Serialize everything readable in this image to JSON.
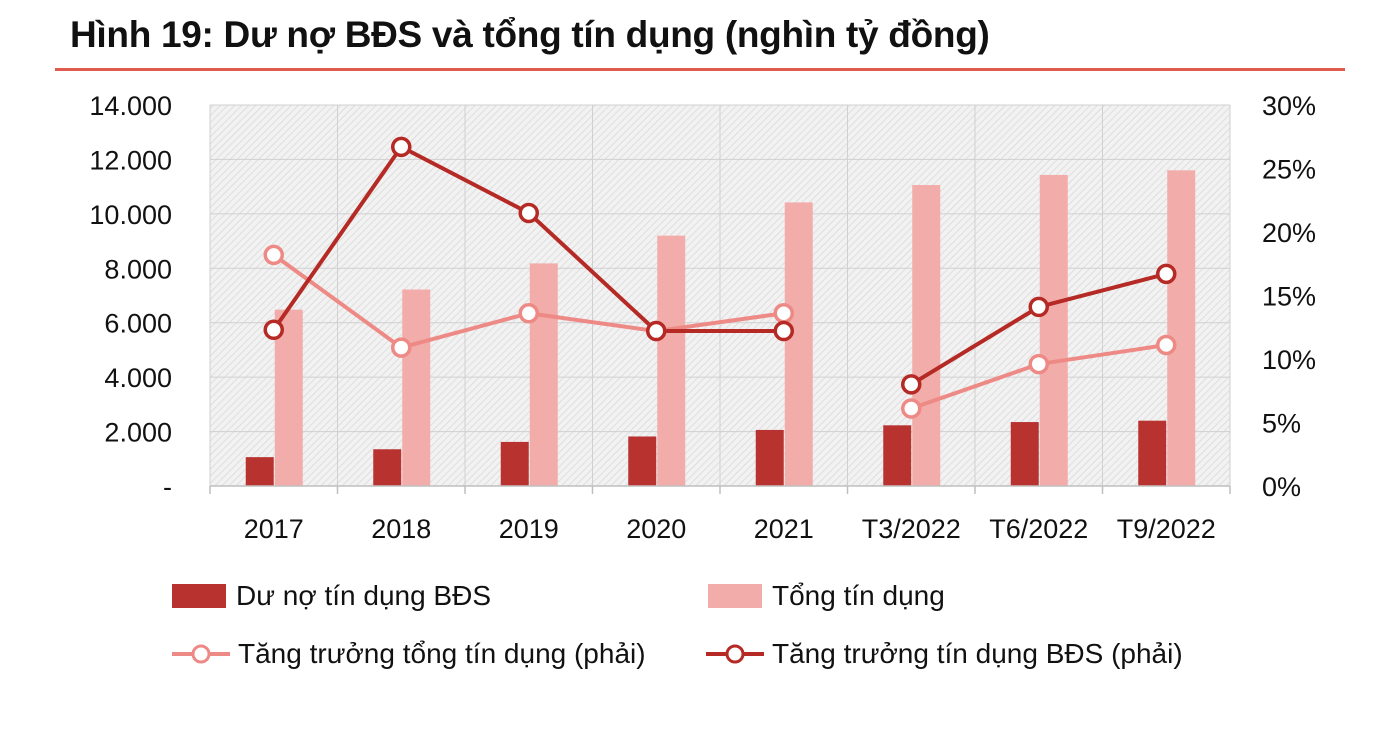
{
  "title": "Hình 19: Dư nợ BĐS và tổng tín dụng (nghìn tỷ đồng)",
  "colors": {
    "bds": "#b8332f",
    "total": "#f2adab",
    "growth_total": "#ee8a86",
    "growth_bds": "#b52a25",
    "accent": "#e05a4e"
  },
  "legend": {
    "bds_debt": "Dư nợ tín dụng BĐS",
    "total_credit": "Tổng tín dụng",
    "total_growth": "Tăng trưởng tổng tín dụng (phải)",
    "bds_growth": "Tăng trưởng tín dụng BĐS (phải)"
  },
  "chart_data": {
    "type": "bar",
    "categories": [
      "2017",
      "2018",
      "2019",
      "2020",
      "2021",
      "T3/2022",
      "T6/2022",
      "T9/2022"
    ],
    "y_left_ticks": [
      "-",
      "2.000",
      "4.000",
      "6.000",
      "8.000",
      "10.000",
      "12.000",
      "14.000"
    ],
    "y_right_ticks": [
      "0%",
      "5%",
      "10%",
      "15%",
      "20%",
      "25%",
      "30%"
    ],
    "ylim_left": [
      0,
      14000
    ],
    "ylim_right": [
      0,
      30
    ],
    "grid": true,
    "legend_position": "bottom",
    "series": [
      {
        "name": "Dư nợ tín dụng BĐS",
        "kind": "bar",
        "axis": "left",
        "values": [
          1060,
          1350,
          1620,
          1820,
          2060,
          2230,
          2350,
          2400
        ]
      },
      {
        "name": "Tổng tín dụng",
        "kind": "bar",
        "axis": "left",
        "values": [
          6480,
          7220,
          8180,
          9200,
          10420,
          11060,
          11430,
          11600
        ]
      },
      {
        "name": "Tăng trưởng tổng tín dụng (phải)",
        "kind": "line",
        "axis": "right",
        "values": [
          18.2,
          10.9,
          13.6,
          12.2,
          13.6,
          6.1,
          9.6,
          11.1
        ]
      },
      {
        "name": "Tăng trưởng tín dụng BĐS (phải)",
        "kind": "line",
        "axis": "right",
        "values": [
          12.3,
          26.7,
          21.5,
          12.2,
          12.2,
          8.0,
          14.1,
          16.7
        ]
      }
    ]
  }
}
